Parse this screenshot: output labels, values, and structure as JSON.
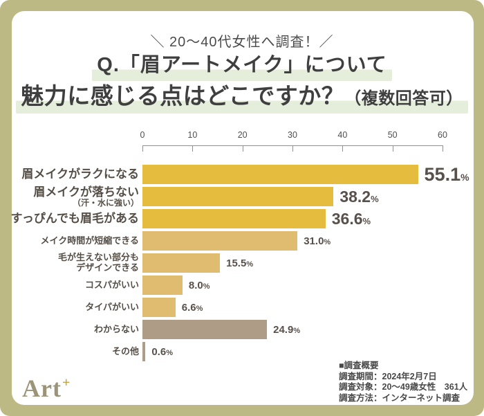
{
  "frame": {
    "border_color": "#BDB984",
    "panel_color": "#FFFFFF",
    "highlight_color": "#E4EEDB"
  },
  "header": {
    "tagline": "＼ 20〜40代女性へ調査！／",
    "title_line1": "Q.「眉アートメイク」について",
    "title_line2": "魅力に感じる点はどこですか？",
    "title_line2_note": "（複数回答可）"
  },
  "chart_data": {
    "type": "bar",
    "orientation": "horizontal",
    "title": "Q.「眉アートメイク」について魅力に感じる点はどこですか？（複数回答可）",
    "unit": "%",
    "xlim": [
      0,
      60
    ],
    "x_ticks": [
      0,
      10,
      20,
      30,
      40,
      50,
      60
    ],
    "grid": false,
    "legend": false,
    "categories": [
      "眉メイクがラクになる",
      "眉メイクが落ちない（汗・水に強い）",
      "すっぴんでも眉毛がある",
      "メイク時間が短縮できる",
      "毛が生えない部分もデザインできる",
      "コスパがいい",
      "タイパがいい",
      "わからない",
      "その他"
    ],
    "values": [
      55.1,
      38.2,
      36.6,
      31.0,
      15.5,
      8.0,
      6.6,
      24.9,
      0.6
    ],
    "colors": {
      "gold": "#E5BC3E",
      "tan": "#E0BC71",
      "brown": "#AF9C87"
    },
    "rows": [
      {
        "label": "眉メイクがラクになる",
        "sub": "",
        "value": 55.1,
        "color": "gold",
        "value_tier": "xl",
        "label_tier": "lg"
      },
      {
        "label": "眉メイクが落ちない",
        "sub": "（汗・水に強い）",
        "value": 38.2,
        "color": "gold",
        "value_tier": "lg",
        "label_tier": "lg"
      },
      {
        "label": "すっぴんでも眉毛がある",
        "sub": "",
        "value": 36.6,
        "color": "gold",
        "value_tier": "lg",
        "label_tier": "lg"
      },
      {
        "label": "メイク時間が短縮できる",
        "sub": "",
        "value": 31.0,
        "color": "tan",
        "value_tier": "md",
        "label_tier": "sm"
      },
      {
        "label": "毛が生えない部分も\nデザインできる",
        "sub": "",
        "value": 15.5,
        "color": "tan",
        "value_tier": "md",
        "label_tier": "sm"
      },
      {
        "label": "コスパがいい",
        "sub": "",
        "value": 8.0,
        "color": "tan",
        "value_tier": "md",
        "label_tier": "sm"
      },
      {
        "label": "タイパがいい",
        "sub": "",
        "value": 6.6,
        "color": "tan",
        "value_tier": "md",
        "label_tier": "sm"
      },
      {
        "label": "わからない",
        "sub": "",
        "value": 24.9,
        "color": "brown",
        "value_tier": "md",
        "label_tier": "sm"
      },
      {
        "label": "その他",
        "sub": "",
        "value": 0.6,
        "color": "brown",
        "value_tier": "md",
        "label_tier": "sm"
      }
    ]
  },
  "footer": {
    "logo_text": "Art",
    "logo_plus": "+",
    "survey": [
      "■調査概要",
      "調査期間：2024年2月7日",
      "調査対象：20〜49歳女性　361人",
      "調査方法：インターネット調査"
    ]
  }
}
